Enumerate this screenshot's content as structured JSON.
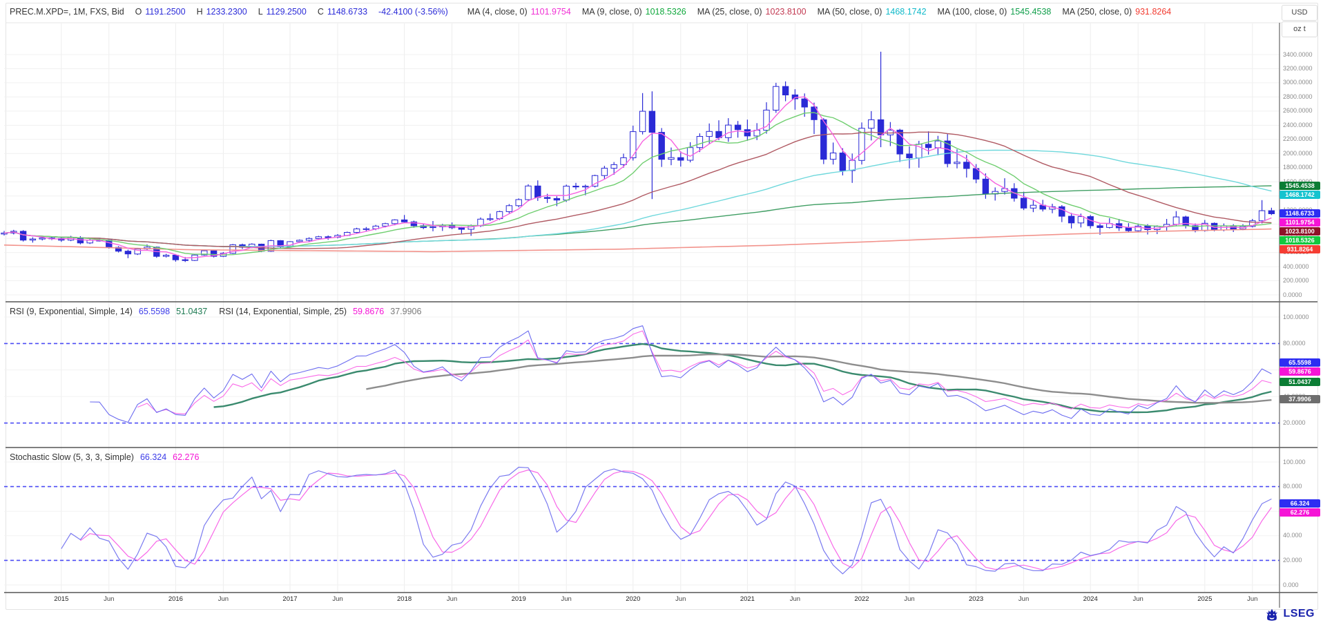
{
  "header": {
    "symbol_line": "PREC.M.XPD=, 1M, FXS, Bid",
    "o_label": "O",
    "o_value": "1191.2500",
    "h_label": "H",
    "h_value": "1233.2300",
    "l_label": "L",
    "l_value": "1129.2500",
    "c_label": "C",
    "c_value": "1148.6733",
    "change": "-42.4100 (-3.56%)",
    "ohlc_color": "#2b2bd8",
    "mas": [
      {
        "label": "MA (4, close, 0)",
        "value": "1101.9754",
        "color": "#f02fd4"
      },
      {
        "label": "MA (9, close, 0)",
        "value": "1018.5326",
        "color": "#0fa83c"
      },
      {
        "label": "MA (25, close, 0)",
        "value": "1023.8100",
        "color": "#c23a52"
      },
      {
        "label": "MA (50, close, 0)",
        "value": "1468.1742",
        "color": "#0fb9c9"
      },
      {
        "label": "MA (100, close, 0)",
        "value": "1545.4538",
        "color": "#0f9e4a"
      },
      {
        "label": "MA (250, close, 0)",
        "value": "931.8264",
        "color": "#f23b30"
      }
    ]
  },
  "axis_units": {
    "currency": "USD",
    "unit": "oz t"
  },
  "main_chart": {
    "y_labels": [
      "3400.0000",
      "3200.0000",
      "3000.0000",
      "2800.0000",
      "2600.0000",
      "2400.0000",
      "2200.0000",
      "2000.0000",
      "1800.0000",
      "1600.0000",
      "1400.0000",
      "1200.0000",
      "1000.0000",
      "800.0000",
      "600.0000",
      "400.0000",
      "200.0000",
      "0.0000"
    ],
    "price_tags": [
      {
        "text": "1545.4538",
        "price": 1545.4538,
        "bg": "#0b7d34"
      },
      {
        "text": "1468.1742",
        "price": 1468.1742,
        "bg": "#15c3cf"
      },
      {
        "text": "1148.6733",
        "price": 1148.6733,
        "bg": "#2d2df2"
      },
      {
        "text": "1101.9754",
        "price": 1101.9754,
        "bg": "#f514d6"
      },
      {
        "text": "1023.8100",
        "price": 1023.81,
        "bg": "#8e1128"
      },
      {
        "text": "1018.5326",
        "price": 1018.5326,
        "bg": "#12c93f"
      },
      {
        "text": "931.8264",
        "price": 931.8264,
        "bg": "#f53d33"
      }
    ]
  },
  "rsi_panel": {
    "title_1": "RSI (9, Exponential, Simple, 14)",
    "value_1": "65.5598",
    "value_1_color": "#3c3ce8",
    "value_2": "51.0437",
    "value_2_color": "#1d7a52",
    "title_2": "RSI (14, Exponential, Simple, 25)",
    "value_3": "59.8676",
    "value_3_color": "#f514d6",
    "value_4": "37.9906",
    "value_4_color": "#7a7a7a",
    "y_labels": [
      {
        "v": 100,
        "t": "100.0000"
      },
      {
        "v": 80,
        "t": "80.0000"
      },
      {
        "v": 60,
        "t": "60.0000"
      },
      {
        "v": 40,
        "t": "40.0000"
      },
      {
        "v": 20,
        "t": "20.0000"
      }
    ],
    "tags": [
      {
        "text": "65.5598",
        "v": 65.5598,
        "bg": "#2d2df2"
      },
      {
        "text": "59.8676",
        "v": 59.8676,
        "bg": "#f514d6"
      },
      {
        "text": "51.0437",
        "v": 51.0437,
        "bg": "#0b7d34"
      },
      {
        "text": "37.9906",
        "v": 37.9906,
        "bg": "#6e6e6e"
      }
    ]
  },
  "stoch_panel": {
    "title": "Stochastic Slow (5, 3, 3, Simple)",
    "value_1": "66.324",
    "value_1_color": "#3c3ce8",
    "value_2": "62.276",
    "value_2_color": "#f514d6",
    "y_labels": [
      {
        "v": 100,
        "t": "100.000"
      },
      {
        "v": 80,
        "t": "80.000"
      },
      {
        "v": 60,
        "t": "60.000"
      },
      {
        "v": 40,
        "t": "40.000"
      },
      {
        "v": 20,
        "t": "20.000"
      },
      {
        "v": 0,
        "t": "0.000"
      }
    ],
    "tags": [
      {
        "text": "66.324",
        "v": 66.324,
        "bg": "#2d2df2"
      },
      {
        "text": "62.276",
        "v": 62.276,
        "bg": "#f514d6"
      }
    ]
  },
  "x_ticks": [
    {
      "i": 6,
      "t": "2015"
    },
    {
      "i": 11,
      "t": "Jun"
    },
    {
      "i": 18,
      "t": "2016"
    },
    {
      "i": 23,
      "t": "Jun"
    },
    {
      "i": 30,
      "t": "2017"
    },
    {
      "i": 35,
      "t": "Jun"
    },
    {
      "i": 42,
      "t": "2018"
    },
    {
      "i": 47,
      "t": "Jun"
    },
    {
      "i": 54,
      "t": "2019"
    },
    {
      "i": 59,
      "t": "Jun"
    },
    {
      "i": 66,
      "t": "2020"
    },
    {
      "i": 71,
      "t": "Jun"
    },
    {
      "i": 78,
      "t": "2021"
    },
    {
      "i": 83,
      "t": "Jun"
    },
    {
      "i": 90,
      "t": "2022"
    },
    {
      "i": 95,
      "t": "Jun"
    },
    {
      "i": 102,
      "t": "2023"
    },
    {
      "i": 107,
      "t": "Jun"
    },
    {
      "i": 114,
      "t": "2024"
    },
    {
      "i": 119,
      "t": "Jun"
    },
    {
      "i": 126,
      "t": "2025"
    },
    {
      "i": 131,
      "t": "Jun"
    }
  ],
  "footer": {
    "logo_text": "LSEG"
  },
  "chart_data": {
    "type": "candlestick",
    "symbol": "PREC.M.XPD=",
    "interval": "1M",
    "start_month": "2014-07",
    "price_range": [
      0,
      3400
    ],
    "candles": [
      [
        860,
        905,
        840,
        875
      ],
      [
        875,
        920,
        855,
        900
      ],
      [
        900,
        915,
        755,
        775
      ],
      [
        775,
        815,
        740,
        790
      ],
      [
        790,
        830,
        770,
        805
      ],
      [
        805,
        825,
        775,
        798
      ],
      [
        798,
        815,
        750,
        775
      ],
      [
        775,
        835,
        760,
        810
      ],
      [
        810,
        830,
        715,
        735
      ],
      [
        735,
        800,
        720,
        774
      ],
      [
        774,
        800,
        755,
        773
      ],
      [
        773,
        785,
        655,
        672
      ],
      [
        672,
        690,
        600,
        618
      ],
      [
        618,
        640,
        520,
        579
      ],
      [
        579,
        665,
        565,
        650
      ],
      [
        650,
        715,
        630,
        676
      ],
      [
        676,
        685,
        525,
        545
      ],
      [
        545,
        580,
        530,
        562
      ],
      [
        562,
        570,
        470,
        497
      ],
      [
        497,
        535,
        465,
        488
      ],
      [
        488,
        580,
        480,
        564
      ],
      [
        564,
        640,
        555,
        624
      ],
      [
        624,
        635,
        530,
        545
      ],
      [
        545,
        605,
        535,
        589
      ],
      [
        589,
        720,
        580,
        709
      ],
      [
        709,
        725,
        650,
        674
      ],
      [
        674,
        730,
        660,
        718
      ],
      [
        718,
        725,
        605,
        618
      ],
      [
        618,
        780,
        610,
        768
      ],
      [
        768,
        775,
        650,
        679
      ],
      [
        679,
        760,
        670,
        753
      ],
      [
        753,
        785,
        735,
        773
      ],
      [
        773,
        815,
        750,
        798
      ],
      [
        798,
        835,
        780,
        823
      ],
      [
        823,
        840,
        780,
        816
      ],
      [
        816,
        860,
        800,
        841
      ],
      [
        841,
        895,
        830,
        884
      ],
      [
        884,
        950,
        870,
        934
      ],
      [
        934,
        960,
        895,
        936
      ],
      [
        936,
        990,
        915,
        973
      ],
      [
        973,
        1020,
        955,
        1008
      ],
      [
        1008,
        1070,
        985,
        1061
      ],
      [
        1061,
        1130,
        1020,
        1033
      ],
      [
        1033,
        1050,
        950,
        978
      ],
      [
        978,
        1005,
        930,
        952
      ],
      [
        952,
        1045,
        900,
        963
      ],
      [
        963,
        1005,
        905,
        984
      ],
      [
        984,
        1025,
        930,
        950
      ],
      [
        950,
        965,
        870,
        928
      ],
      [
        928,
        995,
        835,
        978
      ],
      [
        978,
        1095,
        960,
        1072
      ],
      [
        1072,
        1150,
        1045,
        1078
      ],
      [
        1078,
        1190,
        1060,
        1178
      ],
      [
        1178,
        1285,
        1155,
        1262
      ],
      [
        1262,
        1365,
        1240,
        1348
      ],
      [
        1348,
        1565,
        1325,
        1541
      ],
      [
        1541,
        1620,
        1330,
        1379
      ],
      [
        1379,
        1430,
        1300,
        1364
      ],
      [
        1364,
        1395,
        1255,
        1342
      ],
      [
        1342,
        1560,
        1315,
        1539
      ],
      [
        1539,
        1585,
        1490,
        1528
      ],
      [
        1528,
        1560,
        1410,
        1538
      ],
      [
        1538,
        1700,
        1520,
        1688
      ],
      [
        1688,
        1825,
        1640,
        1792
      ],
      [
        1792,
        1880,
        1700,
        1843
      ],
      [
        1843,
        1998,
        1800,
        1940
      ],
      [
        1940,
        2395,
        1900,
        2310
      ],
      [
        2310,
        2855,
        2270,
        2598
      ],
      [
        2598,
        2880,
        1355,
        2300
      ],
      [
        2300,
        2360,
        1810,
        1918
      ],
      [
        1918,
        2085,
        1835,
        1942
      ],
      [
        1942,
        2030,
        1815,
        1905
      ],
      [
        1905,
        2160,
        1875,
        2084
      ],
      [
        2084,
        2285,
        2020,
        2242
      ],
      [
        2242,
        2425,
        2135,
        2313
      ],
      [
        2313,
        2470,
        2190,
        2224
      ],
      [
        2224,
        2500,
        2165,
        2402
      ],
      [
        2402,
        2460,
        2225,
        2338
      ],
      [
        2338,
        2480,
        2180,
        2248
      ],
      [
        2248,
        2430,
        2190,
        2329
      ],
      [
        2329,
        2725,
        2280,
        2614
      ],
      [
        2614,
        3000,
        2575,
        2949
      ],
      [
        2949,
        3020,
        2740,
        2829
      ],
      [
        2829,
        2910,
        2620,
        2773
      ],
      [
        2773,
        2850,
        2520,
        2658
      ],
      [
        2658,
        2720,
        2275,
        2478
      ],
      [
        2478,
        2500,
        1850,
        1919
      ],
      [
        1919,
        2155,
        1845,
        2008
      ],
      [
        2008,
        2075,
        1690,
        1758
      ],
      [
        1758,
        2000,
        1585,
        1903
      ],
      [
        1903,
        2440,
        1845,
        2358
      ],
      [
        2358,
        2600,
        2185,
        2478
      ],
      [
        2478,
        3440,
        2090,
        2264
      ],
      [
        2264,
        2445,
        2105,
        2331
      ],
      [
        2331,
        2350,
        1880,
        1993
      ],
      [
        1993,
        2100,
        1790,
        1938
      ],
      [
        1938,
        2180,
        1800,
        2131
      ],
      [
        2131,
        2315,
        1985,
        2083
      ],
      [
        2083,
        2250,
        1975,
        2178
      ],
      [
        2178,
        2275,
        1805,
        1858
      ],
      [
        1858,
        2060,
        1790,
        1878
      ],
      [
        1878,
        1980,
        1660,
        1788
      ],
      [
        1788,
        1850,
        1580,
        1638
      ],
      [
        1638,
        1720,
        1360,
        1428
      ],
      [
        1428,
        1520,
        1335,
        1464
      ],
      [
        1464,
        1650,
        1420,
        1504
      ],
      [
        1504,
        1580,
        1320,
        1368
      ],
      [
        1368,
        1460,
        1200,
        1228
      ],
      [
        1228,
        1340,
        1170,
        1268
      ],
      [
        1268,
        1345,
        1180,
        1213
      ],
      [
        1213,
        1290,
        1155,
        1248
      ],
      [
        1248,
        1270,
        1030,
        1113
      ],
      [
        1113,
        1160,
        940,
        1018
      ],
      [
        1018,
        1150,
        955,
        1108
      ],
      [
        1108,
        1130,
        940,
        978
      ],
      [
        978,
        1005,
        850,
        953
      ],
      [
        953,
        1085,
        940,
        1008
      ],
      [
        1008,
        1075,
        905,
        948
      ],
      [
        948,
        1015,
        890,
        908
      ],
      [
        908,
        1010,
        885,
        973
      ],
      [
        973,
        1000,
        855,
        923
      ],
      [
        923,
        985,
        860,
        968
      ],
      [
        968,
        1075,
        910,
        998
      ],
      [
        998,
        1185,
        970,
        1103
      ],
      [
        1103,
        1120,
        940,
        978
      ],
      [
        978,
        1010,
        885,
        908
      ],
      [
        908,
        1060,
        895,
        1013
      ],
      [
        1013,
        1025,
        900,
        918
      ],
      [
        918,
        1010,
        900,
        978
      ],
      [
        978,
        1000,
        890,
        933
      ],
      [
        933,
        1000,
        915,
        968
      ],
      [
        968,
        1075,
        955,
        1048
      ],
      [
        1048,
        1340,
        1010,
        1191
      ],
      [
        1191.25,
        1233.23,
        1129.25,
        1148.6733
      ]
    ],
    "up_color": "#ffffff",
    "down_color": "#2a2ad6",
    "candle_stroke": "#2a2ad6",
    "moving_averages": [
      {
        "period": 4,
        "color": "#f763e0",
        "last": 1101.9754
      },
      {
        "period": 9,
        "color": "#6fce6f",
        "last": 1018.5326
      },
      {
        "period": 25,
        "color": "#b05a63",
        "last": 1023.81
      },
      {
        "period": 50,
        "color": "#6fd8dc",
        "last": 1468.1742
      },
      {
        "period": 100,
        "color": "#3f9e63",
        "last": 1545.4538
      }
    ],
    "ma250": {
      "color": "#f2938c",
      "last": 931.8264,
      "anchors": [
        [
          0,
          705
        ],
        [
          20,
          638
        ],
        [
          45,
          612
        ],
        [
          65,
          648
        ],
        [
          80,
          700
        ],
        [
          90,
          748
        ],
        [
          100,
          802
        ],
        [
          112,
          862
        ],
        [
          122,
          902
        ],
        [
          133,
          932
        ]
      ]
    },
    "rsi": {
      "periods": [
        9,
        14
      ],
      "smooth_periods": [
        14,
        25
      ],
      "colors": {
        "rsi9": "#6b6bf0",
        "rsi14": "#fa6ae8",
        "sma14": "#3a8a6e",
        "sma25": "#8d8d8d"
      },
      "levels": [
        80,
        20
      ],
      "range": [
        0,
        100
      ],
      "last": {
        "rsi9": 65.5598,
        "sma14": 51.0437,
        "rsi14": 59.8676,
        "sma25": 37.9906
      }
    },
    "stochastic": {
      "params": [
        5,
        3,
        3
      ],
      "colors": {
        "k": "#7a7af0",
        "d": "#f868e8"
      },
      "levels": [
        80,
        20
      ],
      "range": [
        0,
        100
      ],
      "last": {
        "k": 66.324,
        "d": 62.276
      }
    },
    "level_line_color": "#4a4af5",
    "grid": true,
    "legend_position": "top-left"
  }
}
